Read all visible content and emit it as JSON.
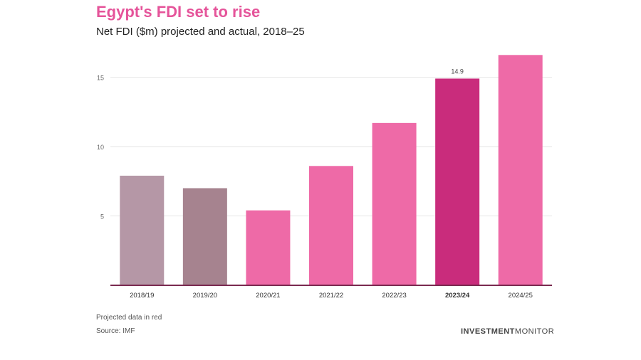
{
  "header": {
    "title": "Egypt's FDI set to rise",
    "subtitle": "Net FDI ($m) projected and actual, 2018–25"
  },
  "chart_data": {
    "type": "bar",
    "title": "Egypt's FDI set to rise",
    "subtitle": "Net FDI ($m) projected and actual, 2018–25",
    "xlabel": "",
    "ylabel": "",
    "categories": [
      "2018/19",
      "2019/20",
      "2020/21",
      "2021/22",
      "2022/23",
      "2023/24",
      "2024/25"
    ],
    "values": [
      7.9,
      7.0,
      5.4,
      8.6,
      11.7,
      14.9,
      16.6
    ],
    "y_ticks": [
      5,
      10,
      15
    ],
    "y_tick_labels": [
      "5",
      "10",
      "15"
    ],
    "ylim": [
      0,
      17
    ],
    "grid": true,
    "data_labels": [
      {
        "category": "2023/24",
        "label": "14.9"
      }
    ],
    "colors": [
      "#b597a6",
      "#a6838f",
      "#ee6aa7",
      "#ee6aa7",
      "#ee6aa7",
      "#c92c7c",
      "#ee6aa7"
    ],
    "highlight_category": "2023/24"
  },
  "footer": {
    "note": "Projected data in red",
    "source": "Source: IMF",
    "brand_bold": "INVESTMENT",
    "brand_light": "MONITOR"
  },
  "style": {
    "title_color": "#e5549a",
    "axis_color": "#7a2a50",
    "grid_color": "#e6e6e6"
  }
}
